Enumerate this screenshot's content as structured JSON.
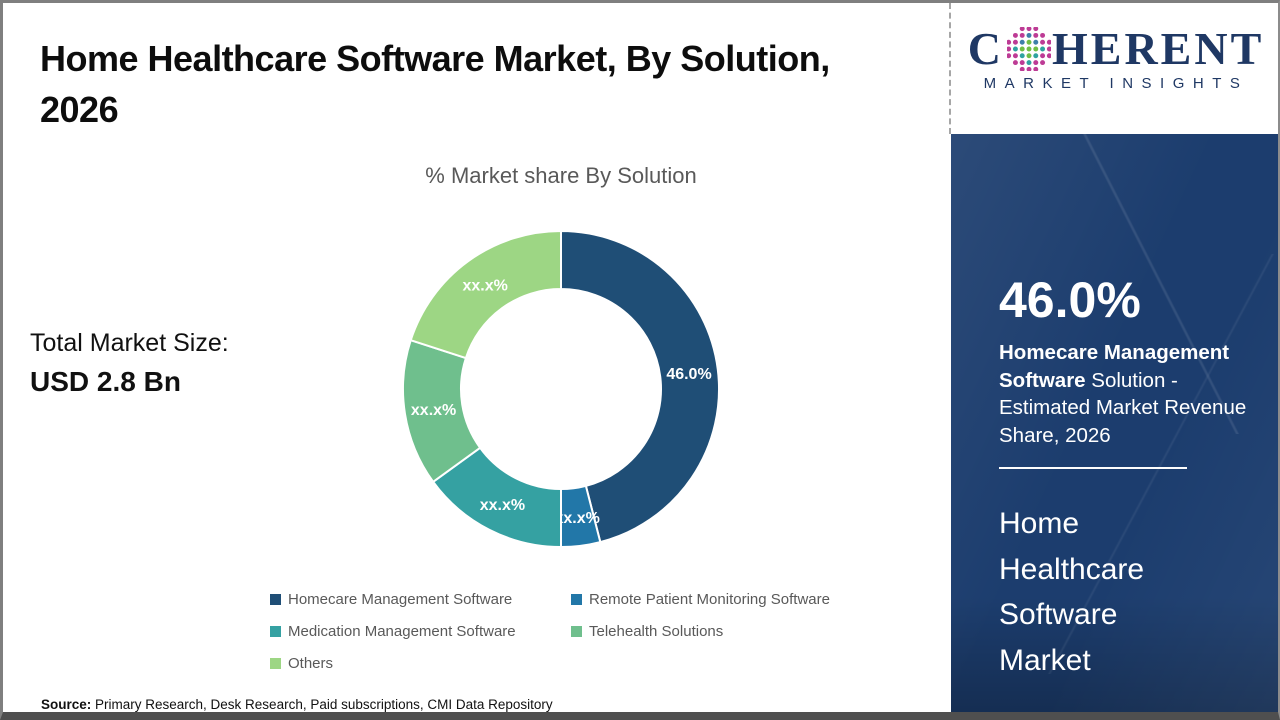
{
  "page": {
    "title_lines": [
      "Home Healthcare Software Market, By Solution,",
      "2026"
    ]
  },
  "chart_data": {
    "type": "pie",
    "subtype": "donut",
    "title": "% Market share By Solution",
    "categories": [
      "Homecare Management Software",
      "Remote Patient Monitoring Software",
      "Medication Management Software",
      "Telehealth Solutions",
      "Others"
    ],
    "values": [
      46.0,
      4.0,
      15.0,
      15.0,
      20.0
    ],
    "slice_labels": [
      "46.0%",
      "xx.x%",
      "xx.x%",
      "xx.x%",
      "xx.x%"
    ],
    "colors": [
      "#1F4E76",
      "#2277A8",
      "#35A1A2",
      "#6FBF8D",
      "#9DD684"
    ],
    "start_angle_deg": 0,
    "direction": "clockwise",
    "legend_position": "bottom",
    "hole_fill": "#ffffff"
  },
  "total_market": {
    "label": "Total Market Size:",
    "value": "USD 2.8 Bn"
  },
  "source": {
    "label": "Source:",
    "text": " Primary Research, Desk Research, Paid subscriptions, CMI Data Repository"
  },
  "logo": {
    "word_start": "C",
    "word_end": "HERENT",
    "subtitle": "MARKET INSIGHTS",
    "brand_navy": "#1f3864"
  },
  "sidebar": {
    "background_color": "#1c3d6e",
    "highlight_value": "46.0%",
    "highlight_bold": "Homecare Management Software",
    "highlight_rest": "  Solution - Estimated Market Revenue Share, 2026",
    "market_name": "Home Healthcare Software Market"
  }
}
